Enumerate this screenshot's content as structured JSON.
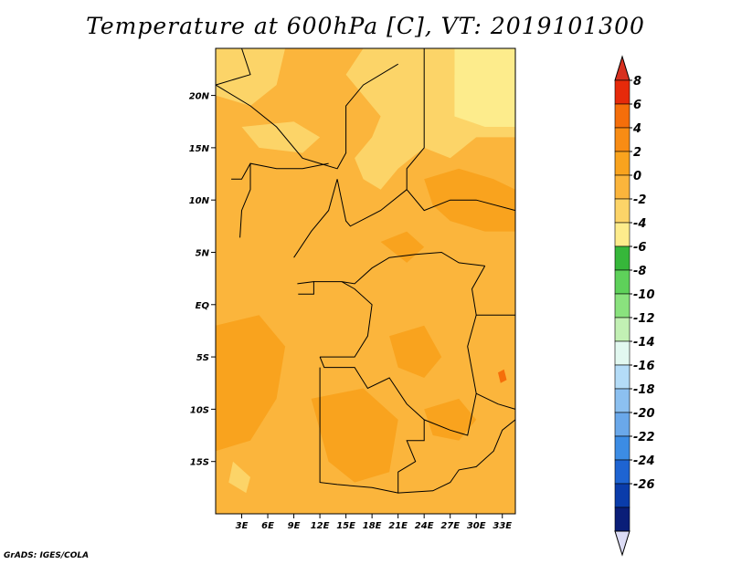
{
  "title": "Temperature at 600hPa [C], VT: 2019101300",
  "credit": "GrADS: IGES/COLA",
  "map": {
    "lon_range": [
      0,
      34.5
    ],
    "lat_range": [
      -20,
      24.5
    ],
    "lat_ticks": [
      {
        "value": 20,
        "label": "20N"
      },
      {
        "value": 15,
        "label": "15N"
      },
      {
        "value": 10,
        "label": "10N"
      },
      {
        "value": 5,
        "label": "5N"
      },
      {
        "value": 0,
        "label": "EQ"
      },
      {
        "value": -5,
        "label": "5S"
      },
      {
        "value": -10,
        "label": "10S"
      },
      {
        "value": -15,
        "label": "15S"
      }
    ],
    "lon_ticks": [
      {
        "value": 3,
        "label": "3E"
      },
      {
        "value": 6,
        "label": "6E"
      },
      {
        "value": 9,
        "label": "9E"
      },
      {
        "value": 12,
        "label": "12E"
      },
      {
        "value": 15,
        "label": "15E"
      },
      {
        "value": 18,
        "label": "18E"
      },
      {
        "value": 21,
        "label": "21E"
      },
      {
        "value": 24,
        "label": "24E"
      },
      {
        "value": 27,
        "label": "27E"
      },
      {
        "value": 30,
        "label": "30E"
      },
      {
        "value": 33,
        "label": "33E"
      }
    ],
    "fill_colors": {
      "base": "#fbb53c",
      "warm": "#f9a31e",
      "cool": "#fcd468",
      "cooler": "#fdec8c",
      "hot": "#f56e0a"
    },
    "border_color": "#000000"
  },
  "colorbar": {
    "levels": [
      "8",
      "6",
      "4",
      "2",
      "0",
      "-2",
      "-4",
      "-6",
      "-8",
      "-10",
      "-12",
      "-14",
      "-16",
      "-18",
      "-20",
      "-22",
      "-24",
      "-26"
    ],
    "colors": [
      "#e62a0a",
      "#f56e0a",
      "#f88c14",
      "#f9a31e",
      "#fbb53c",
      "#fcd468",
      "#fdec8c",
      "#36b73a",
      "#5ed15a",
      "#8ae27e",
      "#c2f0b4",
      "#e2f8f0",
      "#b4dcf7",
      "#8cc0f0",
      "#6aa8ea",
      "#3c8ce4",
      "#1e64d2",
      "#0a3caa",
      "#0a1e78"
    ],
    "overflow_high_color": "#d7301f",
    "overflow_low_color": "#dcdcf5"
  }
}
